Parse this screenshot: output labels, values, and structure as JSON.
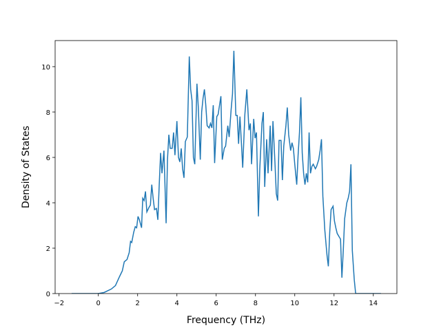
{
  "chart_data": {
    "type": "line",
    "xlabel": "Frequency (THz)",
    "ylabel": "Density of States",
    "xlim": [
      -2.2,
      15.2
    ],
    "ylim": [
      0,
      11.15
    ],
    "xticks": [
      {
        "value": -2,
        "label": "−2"
      },
      0,
      2,
      4,
      6,
      8,
      10,
      12,
      14
    ],
    "yticks": [
      0,
      2,
      4,
      6,
      8,
      10
    ],
    "series": [
      {
        "color": "#1f77b4",
        "x": [
          -1.36,
          0,
          0.3,
          0.66,
          0.87,
          1.08,
          1.22,
          1.32,
          1.46,
          1.57,
          1.64,
          1.7,
          1.8,
          1.88,
          1.95,
          2.02,
          2.09,
          2.2,
          2.26,
          2.33,
          2.4,
          2.47,
          2.58,
          2.65,
          2.72,
          2.79,
          2.86,
          2.96,
          3.03,
          3.1,
          3.17,
          3.24,
          3.34,
          3.45,
          3.52,
          3.59,
          3.66,
          3.76,
          3.83,
          3.9,
          4.0,
          4.08,
          4.15,
          4.22,
          4.29,
          4.36,
          4.43,
          4.53,
          4.63,
          4.7,
          4.77,
          4.84,
          4.91,
          5.02,
          5.09,
          5.19,
          5.26,
          5.33,
          5.4,
          5.47,
          5.54,
          5.64,
          5.71,
          5.78,
          5.85,
          5.92,
          6.03,
          6.1,
          6.17,
          6.24,
          6.31,
          6.41,
          6.48,
          6.59,
          6.66,
          6.76,
          6.83,
          6.9,
          7.0,
          7.07,
          7.14,
          7.21,
          7.28,
          7.35,
          7.46,
          7.56,
          7.67,
          7.74,
          7.8,
          7.91,
          7.98,
          8.05,
          8.15,
          8.22,
          8.33,
          8.4,
          8.47,
          8.57,
          8.64,
          8.75,
          8.82,
          8.89,
          8.99,
          9.06,
          9.13,
          9.2,
          9.3,
          9.37,
          9.44,
          9.55,
          9.62,
          9.69,
          9.79,
          9.86,
          9.93,
          10.0,
          10.1,
          10.17,
          10.24,
          10.31,
          10.38,
          10.45,
          10.52,
          10.59,
          10.66,
          10.73,
          10.8,
          10.87,
          10.94,
          11.05,
          11.11,
          11.22,
          11.29,
          11.36,
          11.43,
          11.53,
          11.64,
          11.71,
          11.78,
          11.85,
          11.95,
          12.02,
          12.09,
          12.16,
          12.26,
          12.33,
          12.4,
          12.47,
          12.54,
          12.65,
          12.72,
          12.79,
          12.86,
          12.93,
          13.03,
          13.1,
          14.39
        ],
        "values": [
          0,
          0,
          0.05,
          0.2,
          0.35,
          0.75,
          1.0,
          1.4,
          1.5,
          1.8,
          2.3,
          2.25,
          2.7,
          2.95,
          2.9,
          3.4,
          3.25,
          2.9,
          4.2,
          4.1,
          4.5,
          3.6,
          3.8,
          3.9,
          4.8,
          4.2,
          3.7,
          3.75,
          3.25,
          4.8,
          6.2,
          5.3,
          6.3,
          3.1,
          5.9,
          7.0,
          6.4,
          6.4,
          7.1,
          6.1,
          7.6,
          6.0,
          5.8,
          6.4,
          5.5,
          5.1,
          6.7,
          6.9,
          10.45,
          9.0,
          8.5,
          6.0,
          5.7,
          9.25,
          8.2,
          5.9,
          8.0,
          8.6,
          9.0,
          8.3,
          7.4,
          7.3,
          7.5,
          7.3,
          8.3,
          5.75,
          7.8,
          7.9,
          8.3,
          8.7,
          5.9,
          6.4,
          6.5,
          7.4,
          6.9,
          8.1,
          8.8,
          10.7,
          7.85,
          7.85,
          6.6,
          7.8,
          6.7,
          5.55,
          7.9,
          9.0,
          7.2,
          7.5,
          5.7,
          7.7,
          6.85,
          7.1,
          3.4,
          5.5,
          7.5,
          8.0,
          4.7,
          6.8,
          5.3,
          7.4,
          5.4,
          7.6,
          5.8,
          4.4,
          4.1,
          6.75,
          6.75,
          5.0,
          6.5,
          7.4,
          8.2,
          7.0,
          6.3,
          6.65,
          6.4,
          5.7,
          4.8,
          6.1,
          7.1,
          8.65,
          6.2,
          5.3,
          4.8,
          5.3,
          4.9,
          7.1,
          5.3,
          5.6,
          5.7,
          5.5,
          5.6,
          5.9,
          6.3,
          6.8,
          4.3,
          2.8,
          1.7,
          1.2,
          2.7,
          3.7,
          3.85,
          3.2,
          2.9,
          2.65,
          2.5,
          2.4,
          0.7,
          1.9,
          3.3,
          4.0,
          4.2,
          4.5,
          5.7,
          1.9,
          0.6,
          0,
          0
        ]
      }
    ]
  }
}
